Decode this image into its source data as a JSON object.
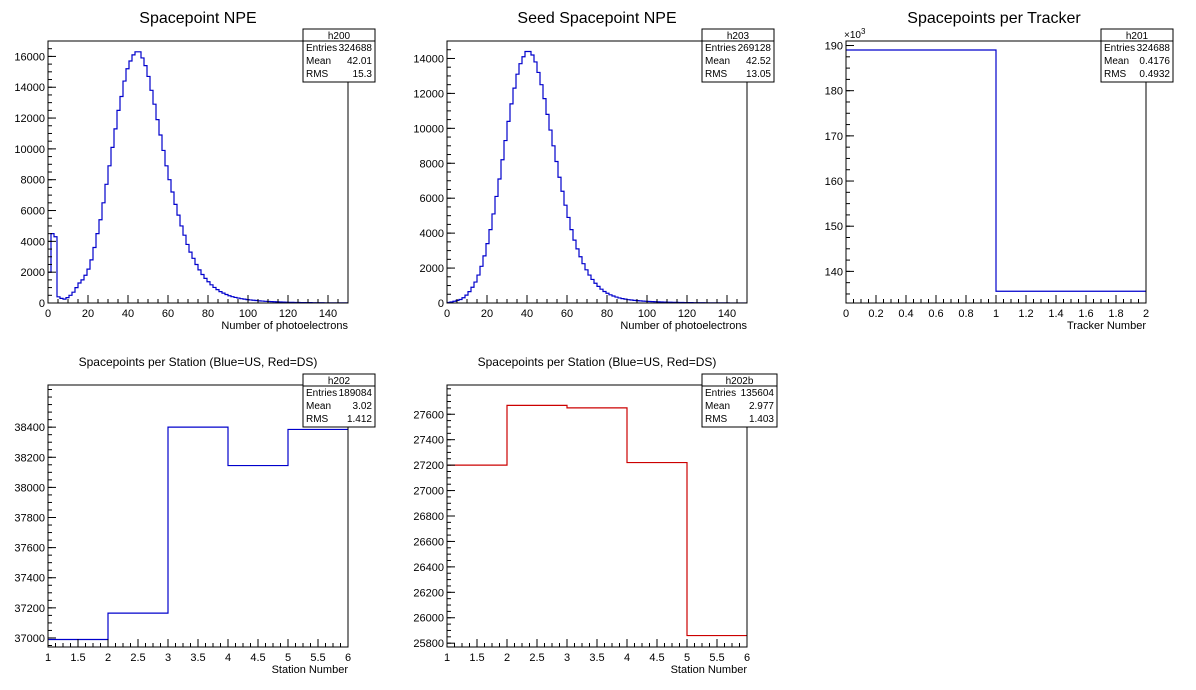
{
  "colors": {
    "blue": "#0000cc",
    "red": "#cc0000",
    "frame": "#000000"
  },
  "chart_data": [
    {
      "type": "histogram",
      "title": "Spacepoint NPE",
      "xlabel": "Number of photoelectrons",
      "xlim": [
        0,
        150
      ],
      "ylim": [
        0,
        17000
      ],
      "xticks": [
        0,
        20,
        40,
        60,
        80,
        100,
        120,
        140
      ],
      "yticks": [
        0,
        2000,
        4000,
        6000,
        8000,
        10000,
        12000,
        14000,
        16000
      ],
      "color": "blue",
      "bin_width": 1.5,
      "values": [
        2000,
        4500,
        4300,
        400,
        300,
        250,
        350,
        500,
        700,
        1000,
        1300,
        1500,
        1800,
        2200,
        2800,
        3600,
        4500,
        5400,
        6500,
        7700,
        8900,
        10100,
        11300,
        12500,
        13400,
        14400,
        15200,
        15700,
        16100,
        16300,
        16300,
        15900,
        15400,
        14700,
        13800,
        12900,
        11900,
        10900,
        9900,
        8900,
        8000,
        7200,
        6400,
        5700,
        5000,
        4400,
        3800,
        3300,
        2900,
        2500,
        2150,
        1850,
        1600,
        1380,
        1180,
        1010,
        870,
        740,
        640,
        550,
        470,
        410,
        360,
        320,
        280,
        250,
        220,
        200,
        180,
        160,
        140,
        125,
        110,
        100,
        90,
        80,
        72,
        65,
        58,
        52,
        46,
        41,
        37,
        33,
        30,
        27,
        24,
        22,
        20,
        18,
        16,
        14,
        13,
        12,
        11,
        10,
        9,
        8,
        7,
        6
      ],
      "stats": {
        "name": "h200",
        "rows": [
          [
            "Entries",
            "324688"
          ],
          [
            "Mean",
            "42.01"
          ],
          [
            "RMS",
            "15.3"
          ]
        ]
      }
    },
    {
      "type": "histogram",
      "title": "Seed Spacepoint NPE",
      "xlabel": "Number of photoelectrons",
      "xlim": [
        0,
        150
      ],
      "ylim": [
        0,
        15000
      ],
      "xticks": [
        0,
        20,
        40,
        60,
        80,
        100,
        120,
        140
      ],
      "yticks": [
        0,
        2000,
        4000,
        6000,
        8000,
        10000,
        12000,
        14000
      ],
      "color": "blue",
      "bin_width": 1.5,
      "values": [
        30,
        60,
        100,
        150,
        200,
        300,
        450,
        650,
        900,
        1200,
        1600,
        2100,
        2700,
        3400,
        4200,
        5100,
        6100,
        7100,
        8200,
        9300,
        10400,
        11400,
        12300,
        13100,
        13700,
        14100,
        14400,
        14400,
        14200,
        13800,
        13200,
        12500,
        11700,
        10800,
        9900,
        9000,
        8100,
        7200,
        6400,
        5600,
        4900,
        4200,
        3600,
        3100,
        2650,
        2250,
        1900,
        1600,
        1350,
        1130,
        950,
        790,
        660,
        560,
        470,
        400,
        340,
        290,
        250,
        220,
        190,
        170,
        150,
        135,
        120,
        108,
        97,
        88,
        80,
        72,
        65,
        58,
        52,
        47,
        42,
        38,
        34,
        30,
        27,
        24,
        22,
        20,
        18,
        16,
        14,
        13,
        12,
        11,
        10,
        9,
        8,
        7,
        6,
        6,
        5,
        5,
        4,
        4,
        3,
        3
      ],
      "stats": {
        "name": "h203",
        "rows": [
          [
            "Entries",
            "269128"
          ],
          [
            "Mean",
            "42.52"
          ],
          [
            "RMS",
            "13.05"
          ]
        ]
      }
    },
    {
      "type": "histogram",
      "title": "Spacepoints per Tracker",
      "xlabel": "Tracker Number",
      "xlim": [
        0,
        2
      ],
      "ylim": [
        133,
        191
      ],
      "xticks": [
        0,
        0.2,
        0.4,
        0.6,
        0.8,
        1,
        1.2,
        1.4,
        1.6,
        1.8,
        2
      ],
      "yticks": [
        140,
        150,
        160,
        170,
        180,
        190
      ],
      "exponent_label": "×10",
      "exponent_power": "3",
      "color": "blue",
      "bin_edges": [
        0,
        1,
        2
      ],
      "values": [
        189,
        135.6
      ],
      "stats": {
        "name": "h201",
        "rows": [
          [
            "Entries",
            "324688"
          ],
          [
            "Mean",
            "0.4176"
          ],
          [
            "RMS",
            "0.4932"
          ]
        ]
      }
    },
    {
      "type": "histogram",
      "title": "Spacepoints per Station (Blue=US, Red=DS)",
      "xlabel": "Station Number",
      "xlim": [
        1,
        6
      ],
      "ylim": [
        36940,
        38680
      ],
      "xticks": [
        1,
        1.5,
        2,
        2.5,
        3,
        3.5,
        4,
        4.5,
        5,
        5.5,
        6
      ],
      "yticks": [
        37000,
        37200,
        37400,
        37600,
        37800,
        38000,
        38200,
        38400
      ],
      "color": "blue",
      "bin_edges": [
        1,
        2,
        3,
        4,
        5,
        6
      ],
      "values": [
        36990,
        37165,
        38400,
        38145,
        38385
      ],
      "stats": {
        "name": "h202",
        "rows": [
          [
            "Entries",
            "189084"
          ],
          [
            "Mean",
            "3.02"
          ],
          [
            "RMS",
            "1.412"
          ]
        ]
      }
    },
    {
      "type": "histogram",
      "title": "Spacepoints per Station (Blue=US, Red=DS)",
      "xlabel": "Station Number",
      "xlim": [
        1,
        6
      ],
      "ylim": [
        25770,
        27830
      ],
      "xticks": [
        1,
        1.5,
        2,
        2.5,
        3,
        3.5,
        4,
        4.5,
        5,
        5.5,
        6
      ],
      "yticks": [
        25800,
        26000,
        26200,
        26400,
        26600,
        26800,
        27000,
        27200,
        27400,
        27600
      ],
      "color": "red",
      "bin_edges": [
        1,
        2,
        3,
        4,
        5,
        6
      ],
      "values": [
        27200,
        27670,
        27650,
        27220,
        25860
      ],
      "stats": {
        "name": "h202b",
        "rows": [
          [
            "Entries",
            "135604"
          ],
          [
            "Mean",
            "2.977"
          ],
          [
            "RMS",
            "1.403"
          ]
        ]
      }
    }
  ]
}
